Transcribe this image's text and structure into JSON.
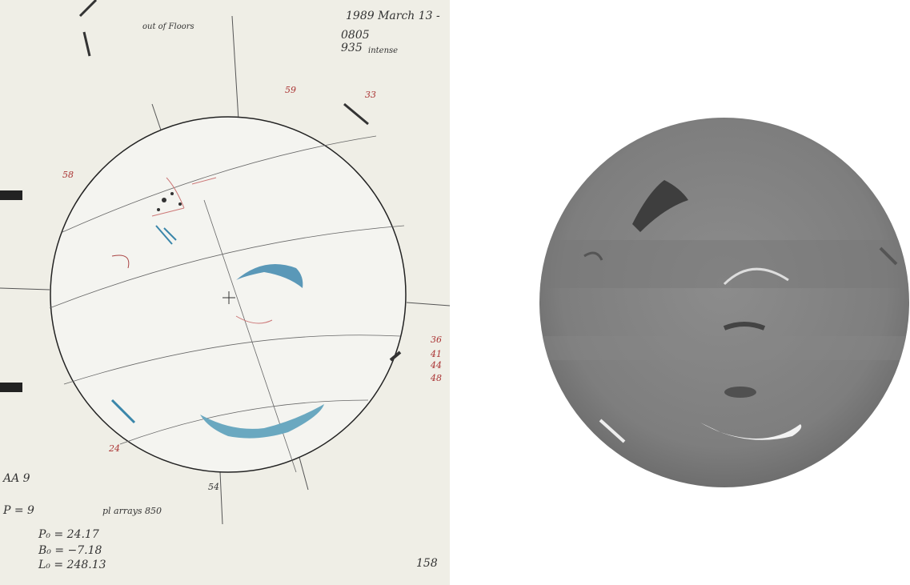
{
  "drawing": {
    "header": {
      "date": "1989 March 13 -",
      "times": [
        "0805",
        "935"
      ],
      "notes": [
        "intense",
        "out of Floors"
      ]
    },
    "ephemeris": [
      "P₀ = 24.17",
      "B₀ = −7.18",
      "L₀ = 248.13"
    ],
    "left_notes": [
      "AA 9",
      "P = 9",
      "pl arrays 850"
    ],
    "region_numbers": [
      "58",
      "59",
      "33",
      "36",
      "41",
      "44",
      "48",
      "24",
      "54"
    ],
    "page_number": "158"
  }
}
